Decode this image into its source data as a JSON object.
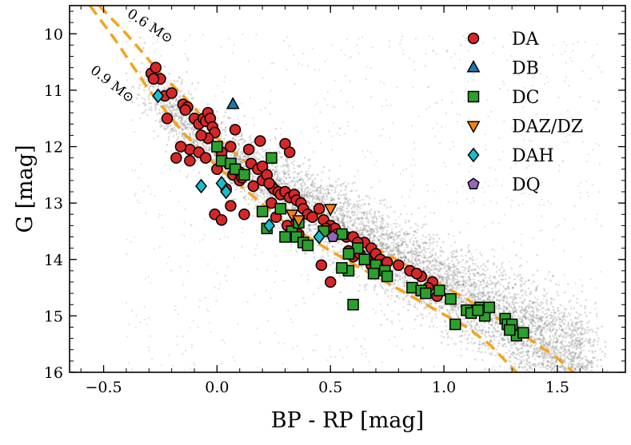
{
  "chart_data": {
    "type": "scatter",
    "xlabel": "BP - RP [mag]",
    "ylabel": "G [mag]",
    "xlim": [
      -0.65,
      1.8
    ],
    "ylim": [
      16,
      9.5
    ],
    "y_inverted": true,
    "x_ticks": [
      -0.5,
      0.0,
      0.5,
      1.0,
      1.5
    ],
    "x_tick_labels": [
      "−0.5",
      "0.0",
      "0.5",
      "1.0",
      "1.5"
    ],
    "y_ticks": [
      10,
      11,
      12,
      13,
      14,
      15,
      16
    ],
    "y_tick_labels": [
      "10",
      "11",
      "12",
      "13",
      "14",
      "15",
      "16"
    ],
    "grid": false,
    "legend_position": "top-right",
    "background_population": {
      "color": "#808080",
      "description_of_trend": "dense grey cloud following the white dwarf cooling sequence"
    },
    "curves": [
      {
        "label": "0.6 M⊙",
        "color": "#f5a31a",
        "style": "dashed",
        "points": [
          [
            -0.52,
            9.5
          ],
          [
            -0.4,
            10.0
          ],
          [
            -0.25,
            10.7
          ],
          [
            -0.1,
            11.3
          ],
          [
            0.0,
            11.85
          ],
          [
            0.15,
            12.35
          ],
          [
            0.3,
            12.8
          ],
          [
            0.5,
            13.35
          ],
          [
            0.7,
            13.8
          ],
          [
            0.9,
            14.25
          ],
          [
            1.1,
            14.7
          ],
          [
            1.3,
            15.2
          ],
          [
            1.5,
            15.75
          ],
          [
            1.57,
            16.0
          ]
        ]
      },
      {
        "label": "0.9 M⊙",
        "color": "#f5a31a",
        "style": "dashed",
        "points": [
          [
            -0.56,
            9.5
          ],
          [
            -0.45,
            10.1
          ],
          [
            -0.3,
            11.0
          ],
          [
            -0.15,
            11.75
          ],
          [
            0.0,
            12.35
          ],
          [
            0.15,
            12.85
          ],
          [
            0.3,
            13.35
          ],
          [
            0.5,
            13.85
          ],
          [
            0.7,
            14.3
          ],
          [
            0.9,
            14.75
          ],
          [
            1.1,
            15.2
          ],
          [
            1.2,
            15.5
          ],
          [
            1.32,
            16.0
          ]
        ]
      }
    ],
    "series": [
      {
        "name": "DA",
        "marker": "circle",
        "color": "#d62728",
        "x": [
          -0.29,
          -0.27,
          -0.25,
          -0.28,
          -0.23,
          -0.22,
          -0.2,
          -0.15,
          -0.13,
          -0.14,
          -0.1,
          -0.08,
          -0.06,
          -0.05,
          -0.04,
          -0.03,
          -0.02,
          -0.01,
          -0.04,
          -0.07,
          -0.12,
          -0.08,
          -0.05,
          0.0,
          0.02,
          0.05,
          0.07,
          0.1,
          0.12,
          0.15,
          0.18,
          0.2,
          0.22,
          0.24,
          0.25,
          0.27,
          0.28,
          0.3,
          0.32,
          0.34,
          0.35,
          0.37,
          0.38,
          0.4,
          0.42,
          0.45,
          0.47,
          0.5,
          0.52,
          0.55,
          0.57,
          0.6,
          0.62,
          0.65,
          0.68,
          0.7,
          0.72,
          0.75,
          0.8,
          0.85,
          0.9,
          0.95,
          0.97,
          0.2,
          0.22,
          0.23,
          0.3,
          0.32,
          0.24,
          0.14,
          0.06,
          0.1,
          0.16,
          0.04,
          0.06,
          0.12,
          -0.01,
          0.02,
          0.26,
          0.31,
          0.33,
          0.36,
          0.48,
          0.53,
          0.58,
          0.6,
          0.63,
          0.66,
          0.68,
          0.5,
          0.46,
          0.62,
          0.88,
          0.93,
          -0.18,
          -0.16,
          0.08,
          -0.12,
          0.19,
          0.11,
          0.35
        ],
        "y": [
          10.7,
          10.6,
          10.8,
          10.8,
          11.1,
          11.5,
          11.05,
          11.25,
          11.3,
          11.35,
          11.5,
          11.6,
          11.5,
          11.55,
          11.4,
          11.5,
          11.65,
          11.75,
          11.85,
          11.8,
          12.05,
          12.1,
          12.2,
          12.4,
          12.1,
          12.3,
          12.5,
          12.45,
          12.5,
          12.3,
          12.4,
          12.6,
          12.5,
          12.7,
          12.75,
          12.8,
          12.85,
          12.8,
          12.9,
          12.85,
          12.95,
          13.0,
          13.1,
          13.2,
          13.25,
          13.1,
          13.3,
          13.4,
          13.45,
          13.55,
          13.6,
          13.6,
          13.7,
          13.7,
          13.8,
          13.9,
          14.0,
          14.05,
          14.1,
          14.2,
          14.3,
          14.4,
          14.65,
          12.35,
          12.5,
          12.65,
          11.95,
          12.1,
          13.0,
          12.05,
          12.0,
          12.6,
          12.7,
          12.75,
          13.05,
          13.2,
          13.2,
          13.3,
          13.25,
          13.4,
          13.5,
          13.55,
          13.45,
          13.55,
          13.85,
          13.95,
          13.9,
          14.0,
          14.1,
          14.4,
          14.1,
          13.7,
          14.25,
          14.5,
          12.2,
          12.0,
          11.7,
          12.25,
          11.9,
          12.55,
          13.35
        ]
      },
      {
        "name": "DB",
        "marker": "triangle-up",
        "color": "#1f77b4",
        "x": [
          0.07
        ],
        "y": [
          11.25
        ]
      },
      {
        "name": "DC",
        "marker": "square",
        "color": "#2ca02c",
        "x": [
          0.0,
          0.02,
          0.06,
          0.08,
          0.12,
          0.2,
          0.22,
          0.28,
          0.33,
          0.35,
          0.36,
          0.38,
          0.3,
          0.4,
          0.55,
          0.58,
          0.62,
          0.65,
          0.7,
          0.74,
          0.75,
          0.86,
          0.9,
          0.92,
          1.03,
          1.05,
          1.1,
          1.12,
          1.16,
          1.18,
          1.2,
          1.27,
          1.28,
          1.3,
          1.32,
          1.35,
          0.6,
          0.24,
          0.47,
          0.55,
          0.58,
          0.69,
          0.98,
          1.15,
          1.29
        ],
        "y": [
          12.0,
          12.25,
          12.3,
          12.4,
          12.5,
          13.15,
          13.45,
          13.1,
          13.5,
          13.6,
          13.35,
          13.7,
          13.6,
          13.75,
          13.55,
          14.2,
          13.8,
          14.0,
          14.1,
          14.2,
          14.3,
          14.5,
          14.55,
          14.6,
          14.7,
          15.15,
          14.9,
          14.95,
          14.85,
          15.0,
          14.85,
          15.05,
          15.15,
          15.15,
          15.35,
          15.3,
          14.8,
          12.2,
          13.5,
          14.15,
          13.9,
          14.25,
          14.55,
          14.9,
          15.25
        ]
      },
      {
        "name": "DAZ/DZ",
        "marker": "triangle-down",
        "color": "#ff7f0e",
        "x": [
          0.33,
          0.36,
          0.5
        ],
        "y": [
          13.2,
          13.3,
          13.1
        ]
      },
      {
        "name": "DAH",
        "marker": "diamond",
        "color": "#17becf",
        "x": [
          -0.26,
          -0.07,
          0.02,
          0.04,
          0.23,
          0.45
        ],
        "y": [
          11.1,
          12.7,
          12.65,
          12.8,
          13.4,
          13.6
        ]
      },
      {
        "name": "DQ",
        "marker": "pentagon",
        "color": "#9467bd",
        "x": [
          0.51
        ],
        "y": [
          13.6
        ]
      }
    ]
  }
}
